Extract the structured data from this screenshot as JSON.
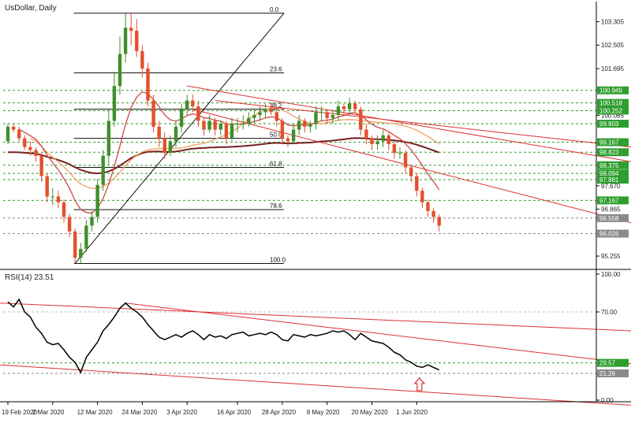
{
  "main_panel": {
    "title": "UsDollar, Daily",
    "price_axis_ticks": [
      "103.305",
      "102.505",
      "101.695",
      "100.085",
      "97.670",
      "96.865",
      "95.255"
    ],
    "price_axis_tick_values": [
      103.305,
      102.505,
      101.695,
      100.085,
      97.67,
      96.865,
      95.255
    ],
    "level_boxes": [
      {
        "label": "100.949",
        "value": 100.949,
        "color": "#2e9e2e"
      },
      {
        "label": "100.518",
        "value": 100.518,
        "color": "#2e9e2e"
      },
      {
        "label": "100.252",
        "value": 100.252,
        "color": "#2e9e2e"
      },
      {
        "label": "99.803",
        "value": 99.803,
        "color": "#2e9e2e"
      },
      {
        "label": "99.167",
        "value": 99.167,
        "color": "#2e9e2e"
      },
      {
        "label": "98.823",
        "value": 98.823,
        "color": "#2e9e2e"
      },
      {
        "label": "98.375",
        "value": 98.375,
        "color": "#2e9e2e"
      },
      {
        "label": "98.094",
        "value": 98.094,
        "color": "#2e9e2e"
      },
      {
        "label": "97.881",
        "value": 97.881,
        "color": "#2e9e2e"
      },
      {
        "label": "97.167",
        "value": 97.167,
        "color": "#2e9e2e"
      },
      {
        "label": "96.558",
        "value": 96.558,
        "color": "#8a8a8a"
      },
      {
        "label": "96.026",
        "value": 96.026,
        "color": "#8a8a8a"
      }
    ],
    "fib_levels": [
      {
        "label": "0.0",
        "value": 103.6
      },
      {
        "label": "23.6",
        "value": 101.55
      },
      {
        "label": "38.2",
        "value": 100.3
      },
      {
        "label": "50.0",
        "value": 99.3
      },
      {
        "label": "61.8",
        "value": 98.3
      },
      {
        "label": "78.6",
        "value": 96.85
      },
      {
        "label": "100.0",
        "value": 95.0
      }
    ]
  },
  "rsi_panel": {
    "title": "RSI(14) 23.51",
    "axis_ticks": [
      "100.00",
      "70.00",
      "0.00"
    ],
    "axis_tick_values": [
      100,
      70,
      0
    ],
    "level_boxes": [
      {
        "label": "29.57",
        "value": 29.57,
        "color": "#2e9e2e"
      },
      {
        "label": "21.26",
        "value": 21.26,
        "color": "#8a8a8a"
      }
    ]
  },
  "x_axis": {
    "date_labels": [
      "19 Feb 2020",
      "2 Mar 2020",
      "12 Mar 2020",
      "24 Mar 2020",
      "3 Apr 2020",
      "16 Apr 2020",
      "28 Apr 2020",
      "8 May 2020",
      "20 May 2020",
      "1 Jun 2020"
    ]
  },
  "colors": {
    "bull": "#3f8f2a",
    "bear": "#e3502b",
    "level_line": "#2e9e2e",
    "trend": "#e03030",
    "ma_fast": "#d04848",
    "ma_mid": "#f0a060",
    "ma_slow": "#7a1f1f",
    "rsi_line": "#000000",
    "arrow": "#e03030"
  },
  "chart_data": [
    {
      "type": "candlestick",
      "title": "UsDollar, Daily",
      "ylim": [
        94.85,
        104.0
      ],
      "x": [
        "19 Feb 2020",
        "20 Feb 2020",
        "21 Feb 2020",
        "24 Feb 2020",
        "25 Feb 2020",
        "26 Feb 2020",
        "27 Feb 2020",
        "28 Feb 2020",
        "2 Mar 2020",
        "3 Mar 2020",
        "4 Mar 2020",
        "5 Mar 2020",
        "6 Mar 2020",
        "9 Mar 2020",
        "10 Mar 2020",
        "11 Mar 2020",
        "12 Mar 2020",
        "13 Mar 2020",
        "16 Mar 2020",
        "17 Mar 2020",
        "18 Mar 2020",
        "19 Mar 2020",
        "20 Mar 2020",
        "23 Mar 2020",
        "24 Mar 2020",
        "25 Mar 2020",
        "26 Mar 2020",
        "27 Mar 2020",
        "30 Mar 2020",
        "31 Mar 2020",
        "1 Apr 2020",
        "2 Apr 2020",
        "3 Apr 2020",
        "6 Apr 2020",
        "7 Apr 2020",
        "8 Apr 2020",
        "9 Apr 2020",
        "10 Apr 2020",
        "13 Apr 2020",
        "14 Apr 2020",
        "15 Apr 2020",
        "16 Apr 2020",
        "17 Apr 2020",
        "20 Apr 2020",
        "21 Apr 2020",
        "22 Apr 2020",
        "23 Apr 2020",
        "24 Apr 2020",
        "27 Apr 2020",
        "28 Apr 2020",
        "29 Apr 2020",
        "30 Apr 2020",
        "1 May 2020",
        "4 May 2020",
        "5 May 2020",
        "6 May 2020",
        "7 May 2020",
        "8 May 2020",
        "11 May 2020",
        "12 May 2020",
        "13 May 2020",
        "14 May 2020",
        "15 May 2020",
        "18 May 2020",
        "19 May 2020",
        "20 May 2020",
        "21 May 2020",
        "22 May 2020",
        "25 May 2020",
        "26 May 2020",
        "27 May 2020",
        "28 May 2020",
        "29 May 2020",
        "1 Jun 2020",
        "2 Jun 2020",
        "3 Jun 2020",
        "4 Jun 2020",
        "5 Jun 2020"
      ],
      "open": [
        99.2,
        99.7,
        99.6,
        99.3,
        99.0,
        98.9,
        98.7,
        98.0,
        97.3,
        97.3,
        97.1,
        96.6,
        96.1,
        95.2,
        95.5,
        96.3,
        96.6,
        97.7,
        98.7,
        99.9,
        101.1,
        102.2,
        103.1,
        103.0,
        102.3,
        101.7,
        100.6,
        99.7,
        99.3,
        98.8,
        99.2,
        99.7,
        100.3,
        100.6,
        100.4,
        99.9,
        99.6,
        99.9,
        99.6,
        99.8,
        99.3,
        99.8,
        99.8,
        99.8,
        100.0,
        100.1,
        100.2,
        100.3,
        100.2,
        99.9,
        99.3,
        99.2,
        99.6,
        99.9,
        99.7,
        99.8,
        100.2,
        100.2,
        100.0,
        100.1,
        100.4,
        100.3,
        100.5,
        100.3,
        99.6,
        99.3,
        99.1,
        99.2,
        99.4,
        99.1,
        98.8,
        98.8,
        98.3,
        98.0,
        97.5,
        97.1,
        96.8,
        96.6
      ],
      "close": [
        99.7,
        99.6,
        99.3,
        99.0,
        98.9,
        98.7,
        98.0,
        97.3,
        97.3,
        97.1,
        96.6,
        96.1,
        95.2,
        95.5,
        96.3,
        96.6,
        97.7,
        98.7,
        99.9,
        101.1,
        102.2,
        103.1,
        103.0,
        102.3,
        101.7,
        100.6,
        99.7,
        99.3,
        98.8,
        99.2,
        99.7,
        100.3,
        100.6,
        100.4,
        99.9,
        99.6,
        99.9,
        99.6,
        99.8,
        99.3,
        99.8,
        99.8,
        99.8,
        100.0,
        100.1,
        100.2,
        100.3,
        100.2,
        99.9,
        99.3,
        99.2,
        99.6,
        99.9,
        99.7,
        99.8,
        100.2,
        100.2,
        100.0,
        100.1,
        100.4,
        100.3,
        100.5,
        100.3,
        99.6,
        99.3,
        99.1,
        99.2,
        99.4,
        99.1,
        98.8,
        98.8,
        98.3,
        98.0,
        97.5,
        97.1,
        96.8,
        96.6,
        96.3
      ],
      "high": [
        99.8,
        99.8,
        99.7,
        99.4,
        99.2,
        99.0,
        98.8,
        98.1,
        97.6,
        97.5,
        97.2,
        96.7,
        96.2,
        95.7,
        96.5,
        96.8,
        97.9,
        98.9,
        100.3,
        101.6,
        102.8,
        103.6,
        103.6,
        103.4,
        102.5,
        101.9,
        100.8,
        99.9,
        99.5,
        99.4,
        99.9,
        100.5,
        100.8,
        100.8,
        100.6,
        100.0,
        100.1,
        100.0,
        99.9,
        99.9,
        100.0,
        100.0,
        100.1,
        100.2,
        100.3,
        100.4,
        100.5,
        100.5,
        100.3,
        100.0,
        99.4,
        99.8,
        100.1,
        100.0,
        99.9,
        100.4,
        100.4,
        100.3,
        100.3,
        100.6,
        100.5,
        100.7,
        100.6,
        100.4,
        99.8,
        99.4,
        99.4,
        99.6,
        99.5,
        99.2,
        99.0,
        98.9,
        98.4,
        98.1,
        97.6,
        97.2,
        96.9,
        96.7
      ],
      "low": [
        99.1,
        99.5,
        99.2,
        98.9,
        98.7,
        98.5,
        97.8,
        97.1,
        97.0,
        96.9,
        96.4,
        95.9,
        95.0,
        95.0,
        95.4,
        96.1,
        96.4,
        97.5,
        98.4,
        99.7,
        100.8,
        101.9,
        102.5,
        102.1,
        101.4,
        100.4,
        99.5,
        99.0,
        98.6,
        98.7,
        99.0,
        99.5,
        100.1,
        100.2,
        99.7,
        99.4,
        99.5,
        99.4,
        99.4,
        99.1,
        99.2,
        99.5,
        99.6,
        99.7,
        99.8,
        99.9,
        100.0,
        100.1,
        99.7,
        99.1,
        99.0,
        99.1,
        99.4,
        99.5,
        99.5,
        99.6,
        99.9,
        99.8,
        99.8,
        99.9,
        100.1,
        100.1,
        100.2,
        99.4,
        99.1,
        98.9,
        98.9,
        99.0,
        98.9,
        98.6,
        98.6,
        98.1,
        97.8,
        97.3,
        96.9,
        96.6,
        96.4,
        96.1
      ]
    },
    {
      "type": "line",
      "title": "RSI(14) 23.51",
      "ylim": [
        0,
        100
      ],
      "x": [
        "19 Feb 2020",
        "20 Feb 2020",
        "21 Feb 2020",
        "24 Feb 2020",
        "25 Feb 2020",
        "26 Feb 2020",
        "27 Feb 2020",
        "28 Feb 2020",
        "2 Mar 2020",
        "3 Mar 2020",
        "4 Mar 2020",
        "5 Mar 2020",
        "6 Mar 2020",
        "9 Mar 2020",
        "10 Mar 2020",
        "11 Mar 2020",
        "12 Mar 2020",
        "13 Mar 2020",
        "16 Mar 2020",
        "17 Mar 2020",
        "18 Mar 2020",
        "19 Mar 2020",
        "20 Mar 2020",
        "23 Mar 2020",
        "24 Mar 2020",
        "25 Mar 2020",
        "26 Mar 2020",
        "27 Mar 2020",
        "30 Mar 2020",
        "31 Mar 2020",
        "1 Apr 2020",
        "2 Apr 2020",
        "3 Apr 2020",
        "6 Apr 2020",
        "7 Apr 2020",
        "8 Apr 2020",
        "9 Apr 2020",
        "10 Apr 2020",
        "13 Apr 2020",
        "14 Apr 2020",
        "15 Apr 2020",
        "16 Apr 2020",
        "17 Apr 2020",
        "20 Apr 2020",
        "21 Apr 2020",
        "22 Apr 2020",
        "23 Apr 2020",
        "24 Apr 2020",
        "27 Apr 2020",
        "28 Apr 2020",
        "29 Apr 2020",
        "30 Apr 2020",
        "1 May 2020",
        "4 May 2020",
        "5 May 2020",
        "6 May 2020",
        "7 May 2020",
        "8 May 2020",
        "11 May 2020",
        "12 May 2020",
        "13 May 2020",
        "14 May 2020",
        "15 May 2020",
        "18 May 2020",
        "19 May 2020",
        "20 May 2020",
        "21 May 2020",
        "22 May 2020",
        "25 May 2020",
        "26 May 2020",
        "27 May 2020",
        "28 May 2020",
        "29 May 2020",
        "1 Jun 2020",
        "2 Jun 2020",
        "3 Jun 2020",
        "4 Jun 2020",
        "5 Jun 2020"
      ],
      "series": [
        {
          "values": [
            78,
            74,
            80,
            70,
            66,
            58,
            53,
            46,
            44,
            45,
            40,
            34,
            30,
            22,
            34,
            40,
            46,
            55,
            60,
            66,
            73,
            77,
            73,
            70,
            66,
            60,
            55,
            50,
            48,
            50,
            52,
            50,
            53,
            55,
            52,
            48,
            52,
            50,
            51,
            49,
            52,
            53,
            54,
            51,
            52,
            53,
            52,
            54,
            52,
            48,
            47,
            52,
            51,
            50,
            52,
            51,
            52,
            53,
            55,
            54,
            55,
            52,
            48,
            53,
            50,
            47,
            46,
            45,
            42,
            38,
            36,
            32,
            30,
            27,
            26,
            28,
            26,
            24
          ]
        }
      ]
    }
  ]
}
